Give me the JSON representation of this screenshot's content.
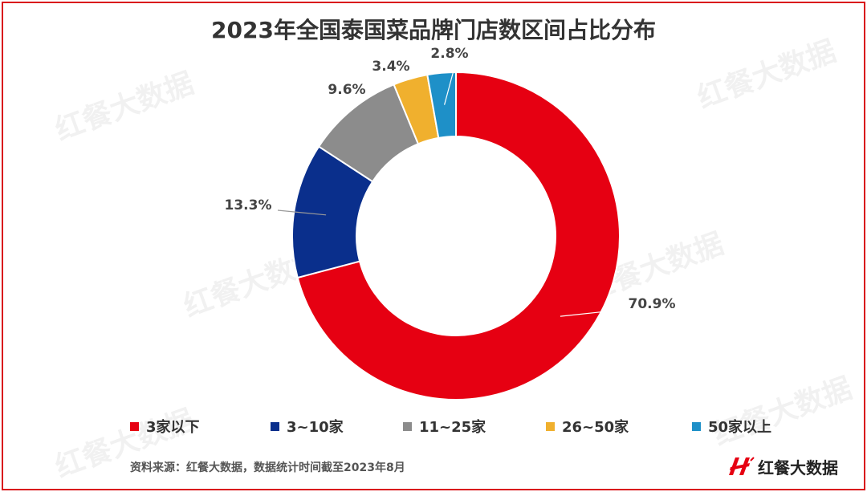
{
  "chart_data": {
    "type": "pie",
    "variant": "donut",
    "title": "2023年全国泰国菜品牌门店数区间占比分布",
    "categories": [
      "3家以下",
      "3~10家",
      "11~25家",
      "26~50家",
      "50家以上"
    ],
    "values": [
      70.9,
      13.3,
      9.6,
      3.4,
      2.8
    ],
    "value_labels": [
      "70.9%",
      "13.3%",
      "9.6%",
      "3.4%",
      "2.8%"
    ],
    "colors": [
      "#e60012",
      "#0a2f8c",
      "#8c8c8c",
      "#f0b02e",
      "#1e90c8"
    ],
    "legend_position": "bottom"
  },
  "footer": {
    "source": "资料来源：红餐大数据，数据统计时间截至2023年8月",
    "brand": "红餐大数据"
  },
  "watermark_text": "红餐大数据",
  "colors": {
    "frame": "#d9161c",
    "title": "#333333"
  }
}
